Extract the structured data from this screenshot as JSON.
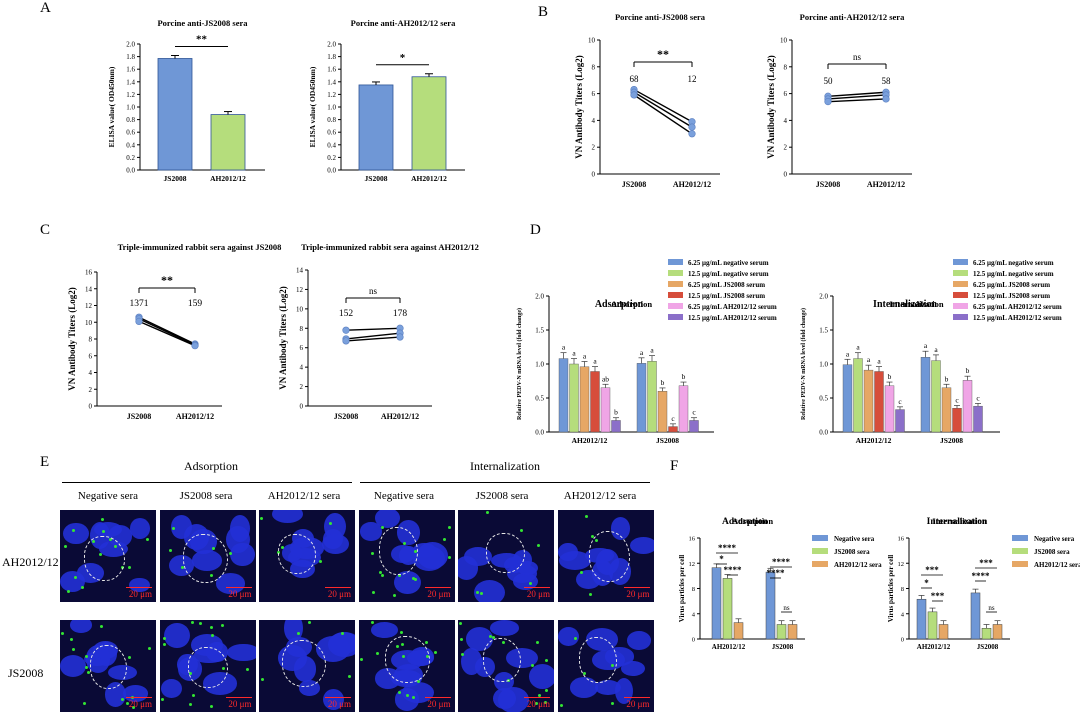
{
  "panels": {
    "A": "A",
    "B": "B",
    "C": "C",
    "D": "D",
    "E": "E",
    "F": "F"
  },
  "colors": {
    "blue": "#6f97d6",
    "green": "#b5dd7c",
    "orange": "#e6a765",
    "red": "#d64d3b",
    "pink": "#f0a5e6",
    "purple": "#8b6fc9",
    "line": "#000000",
    "dot": "#7aa0dc"
  },
  "sig": {
    "two": "**",
    "one": "*",
    "ns": "ns",
    "four": "****",
    "three": "***"
  },
  "chart_data": [
    {
      "panel": "A-left",
      "type": "bar",
      "title": "Porcine anti-JS2008 sera",
      "ylabel": "ELISA value( OD450nm)",
      "categories": [
        "JS2008",
        "AH2012/12"
      ],
      "values": [
        1.77,
        0.88
      ],
      "ylim": [
        0,
        2.0
      ],
      "yticks": [
        "0.0",
        "0.2",
        "0.4",
        "0.6",
        "0.8",
        "1.0",
        "1.2",
        "1.4",
        "1.6",
        "1.8",
        "2.0"
      ],
      "annotation": "**"
    },
    {
      "panel": "A-right",
      "type": "bar",
      "title": "Porcine anti-AH2012/12 sera",
      "ylabel": "ELISA value( OD450nm)",
      "categories": [
        "JS2008",
        "AH2012/12"
      ],
      "values": [
        1.35,
        1.48
      ],
      "ylim": [
        0,
        2.0
      ],
      "yticks": [
        "0.0",
        "0.2",
        "0.4",
        "0.6",
        "0.8",
        "1.0",
        "1.2",
        "1.4",
        "1.6",
        "1.8",
        "2.0"
      ],
      "annotation": "*"
    },
    {
      "panel": "B-left",
      "type": "line",
      "title": "Porcine anti-JS2008 sera",
      "ylabel": "VN Antibody Titers (Log2)",
      "categories": [
        "JS2008",
        "AH2012/12"
      ],
      "series": [
        {
          "values": [
            6.3,
            3.9
          ]
        },
        {
          "values": [
            6.1,
            3.5
          ]
        },
        {
          "values": [
            5.9,
            3.0
          ]
        }
      ],
      "ylim": [
        0,
        10
      ],
      "yticks": [
        "0",
        "2",
        "4",
        "6",
        "8",
        "10"
      ],
      "labels": [
        "68",
        "12"
      ],
      "annotation": "**"
    },
    {
      "panel": "B-right",
      "type": "line",
      "title": "Porcine anti-AH2012/12 sera",
      "ylabel": "VN Antibody Titers (Log2)",
      "categories": [
        "JS2008",
        "AH2012/12"
      ],
      "series": [
        {
          "values": [
            5.8,
            6.1
          ]
        },
        {
          "values": [
            5.6,
            5.9
          ]
        },
        {
          "values": [
            5.4,
            5.6
          ]
        }
      ],
      "ylim": [
        0,
        10
      ],
      "yticks": [
        "0",
        "2",
        "4",
        "6",
        "8",
        "10"
      ],
      "labels": [
        "50",
        "58"
      ],
      "annotation": "ns"
    },
    {
      "panel": "C-left",
      "type": "line",
      "title": "Triple-immunized rabbit sera against JS2008",
      "ylabel": "VN Antibody Titers (Log2)",
      "categories": [
        "JS2008",
        "AH2012/12"
      ],
      "series": [
        {
          "values": [
            10.6,
            7.4
          ]
        },
        {
          "values": [
            10.4,
            7.3
          ]
        },
        {
          "values": [
            10.1,
            7.2
          ]
        }
      ],
      "ylim": [
        0,
        16
      ],
      "yticks": [
        "0",
        "2",
        "4",
        "6",
        "8",
        "10",
        "12",
        "14",
        "16"
      ],
      "labels": [
        "1371",
        "159"
      ],
      "annotation": "**"
    },
    {
      "panel": "C-right",
      "type": "line",
      "title": "Triple-immunized rabbit sera against AH2012/12",
      "ylabel": "VN Antibody Titers (Log2)",
      "categories": [
        "JS2008",
        "AH2012/12"
      ],
      "series": [
        {
          "values": [
            7.8,
            8.0
          ]
        },
        {
          "values": [
            6.9,
            7.5
          ]
        },
        {
          "values": [
            6.7,
            7.1
          ]
        }
      ],
      "ylim": [
        0,
        14
      ],
      "yticks": [
        "0",
        "2",
        "4",
        "6",
        "8",
        "10",
        "12",
        "14"
      ],
      "labels": [
        "152",
        "178"
      ],
      "annotation": "ns"
    },
    {
      "panel": "D-left",
      "type": "bar",
      "title": "Adsorption",
      "ylabel": "Relative PEDV-N mRNA level (fold change)",
      "categories": [
        "AH2012/12",
        "JS2008"
      ],
      "ylim": [
        0,
        2.0
      ],
      "yticks": [
        "0.0",
        "0.5",
        "1.0",
        "1.5",
        "2.0"
      ],
      "series": [
        {
          "name": "6.25 μg/mL negative serum",
          "values": [
            1.08,
            1.01
          ],
          "letters": [
            "a",
            "a"
          ]
        },
        {
          "name": "12.5 μg/mL negative serum",
          "values": [
            1.0,
            1.04
          ],
          "letters": [
            "a",
            "a"
          ]
        },
        {
          "name": "6.25 μg/mL JS2008 serum",
          "values": [
            0.96,
            0.6
          ],
          "letters": [
            "a",
            "b"
          ]
        },
        {
          "name": "12.5 μg/mL JS2008 serum",
          "values": [
            0.89,
            0.08
          ],
          "letters": [
            "a",
            "c"
          ]
        },
        {
          "name": "6.25 μg/mL AH2012/12 serum",
          "values": [
            0.65,
            0.68
          ],
          "letters": [
            "ab",
            "b"
          ]
        },
        {
          "name": "12.5 μg/mL AH2012/12 serum",
          "values": [
            0.17,
            0.17
          ],
          "letters": [
            "b",
            "c"
          ]
        }
      ]
    },
    {
      "panel": "D-right",
      "type": "bar",
      "title": "Internalization",
      "ylabel": "Relative PEDV-N mRNA level (fold change)",
      "categories": [
        "AH2012/12",
        "JS2008"
      ],
      "ylim": [
        0,
        2.0
      ],
      "yticks": [
        "0.0",
        "0.5",
        "1.0",
        "1.5",
        "2.0"
      ],
      "series": [
        {
          "name": "6.25 μg/mL negative serum",
          "values": [
            0.99,
            1.1
          ],
          "letters": [
            "a",
            "a"
          ]
        },
        {
          "name": "12.5 μg/mL negative serum",
          "values": [
            1.08,
            1.05
          ],
          "letters": [
            "a",
            "a"
          ]
        },
        {
          "name": "6.25 μg/mL JS2008 serum",
          "values": [
            0.91,
            0.65
          ],
          "letters": [
            "a",
            "b"
          ]
        },
        {
          "name": "12.5 μg/mL JS2008 serum",
          "values": [
            0.89,
            0.35
          ],
          "letters": [
            "a",
            "c"
          ]
        },
        {
          "name": "6.25 μg/mL AH2012/12 serum",
          "values": [
            0.68,
            0.76
          ],
          "letters": [
            "b",
            "b"
          ]
        },
        {
          "name": "12.5 μg/mL AH2012/12 serum",
          "values": [
            0.33,
            0.38
          ],
          "letters": [
            "c",
            "c"
          ]
        }
      ]
    },
    {
      "panel": "F-left",
      "type": "bar",
      "title": "Adsorption",
      "ylabel": "Virus particles per cell",
      "categories": [
        "AH2012/12",
        "JS2008"
      ],
      "ylim": [
        0,
        16
      ],
      "yticks": [
        "0",
        "4",
        "8",
        "12",
        "16"
      ],
      "series": [
        {
          "name": "Negative sera",
          "values": [
            11.3,
            10.6
          ]
        },
        {
          "name": "JS2008 sera",
          "values": [
            9.6,
            2.3
          ]
        },
        {
          "name": "AH2012/12 sera",
          "values": [
            2.6,
            2.3
          ]
        }
      ]
    },
    {
      "panel": "F-right",
      "type": "bar",
      "title": "Internalization",
      "ylabel": "Virus particles per cell",
      "categories": [
        "AH2012/12",
        "JS2008"
      ],
      "ylim": [
        0,
        16
      ],
      "yticks": [
        "0",
        "4",
        "8",
        "12",
        "16"
      ],
      "series": [
        {
          "name": "Negative sera",
          "values": [
            6.3,
            7.3
          ]
        },
        {
          "name": "JS2008 sera",
          "values": [
            4.3,
            1.7
          ]
        },
        {
          "name": "AH2012/12 sera",
          "values": [
            2.3,
            2.3
          ]
        }
      ]
    }
  ],
  "microscopy": {
    "group_headers": [
      "Adsorption",
      "Internalization"
    ],
    "columns": [
      "Negative sera",
      "JS2008 sera",
      "AH2012/12 sera",
      "Negative sera",
      "JS2008 sera",
      "AH2012/12 sera"
    ],
    "rows": [
      "AH2012/12",
      "JS2008"
    ],
    "scale": "20 μm"
  }
}
